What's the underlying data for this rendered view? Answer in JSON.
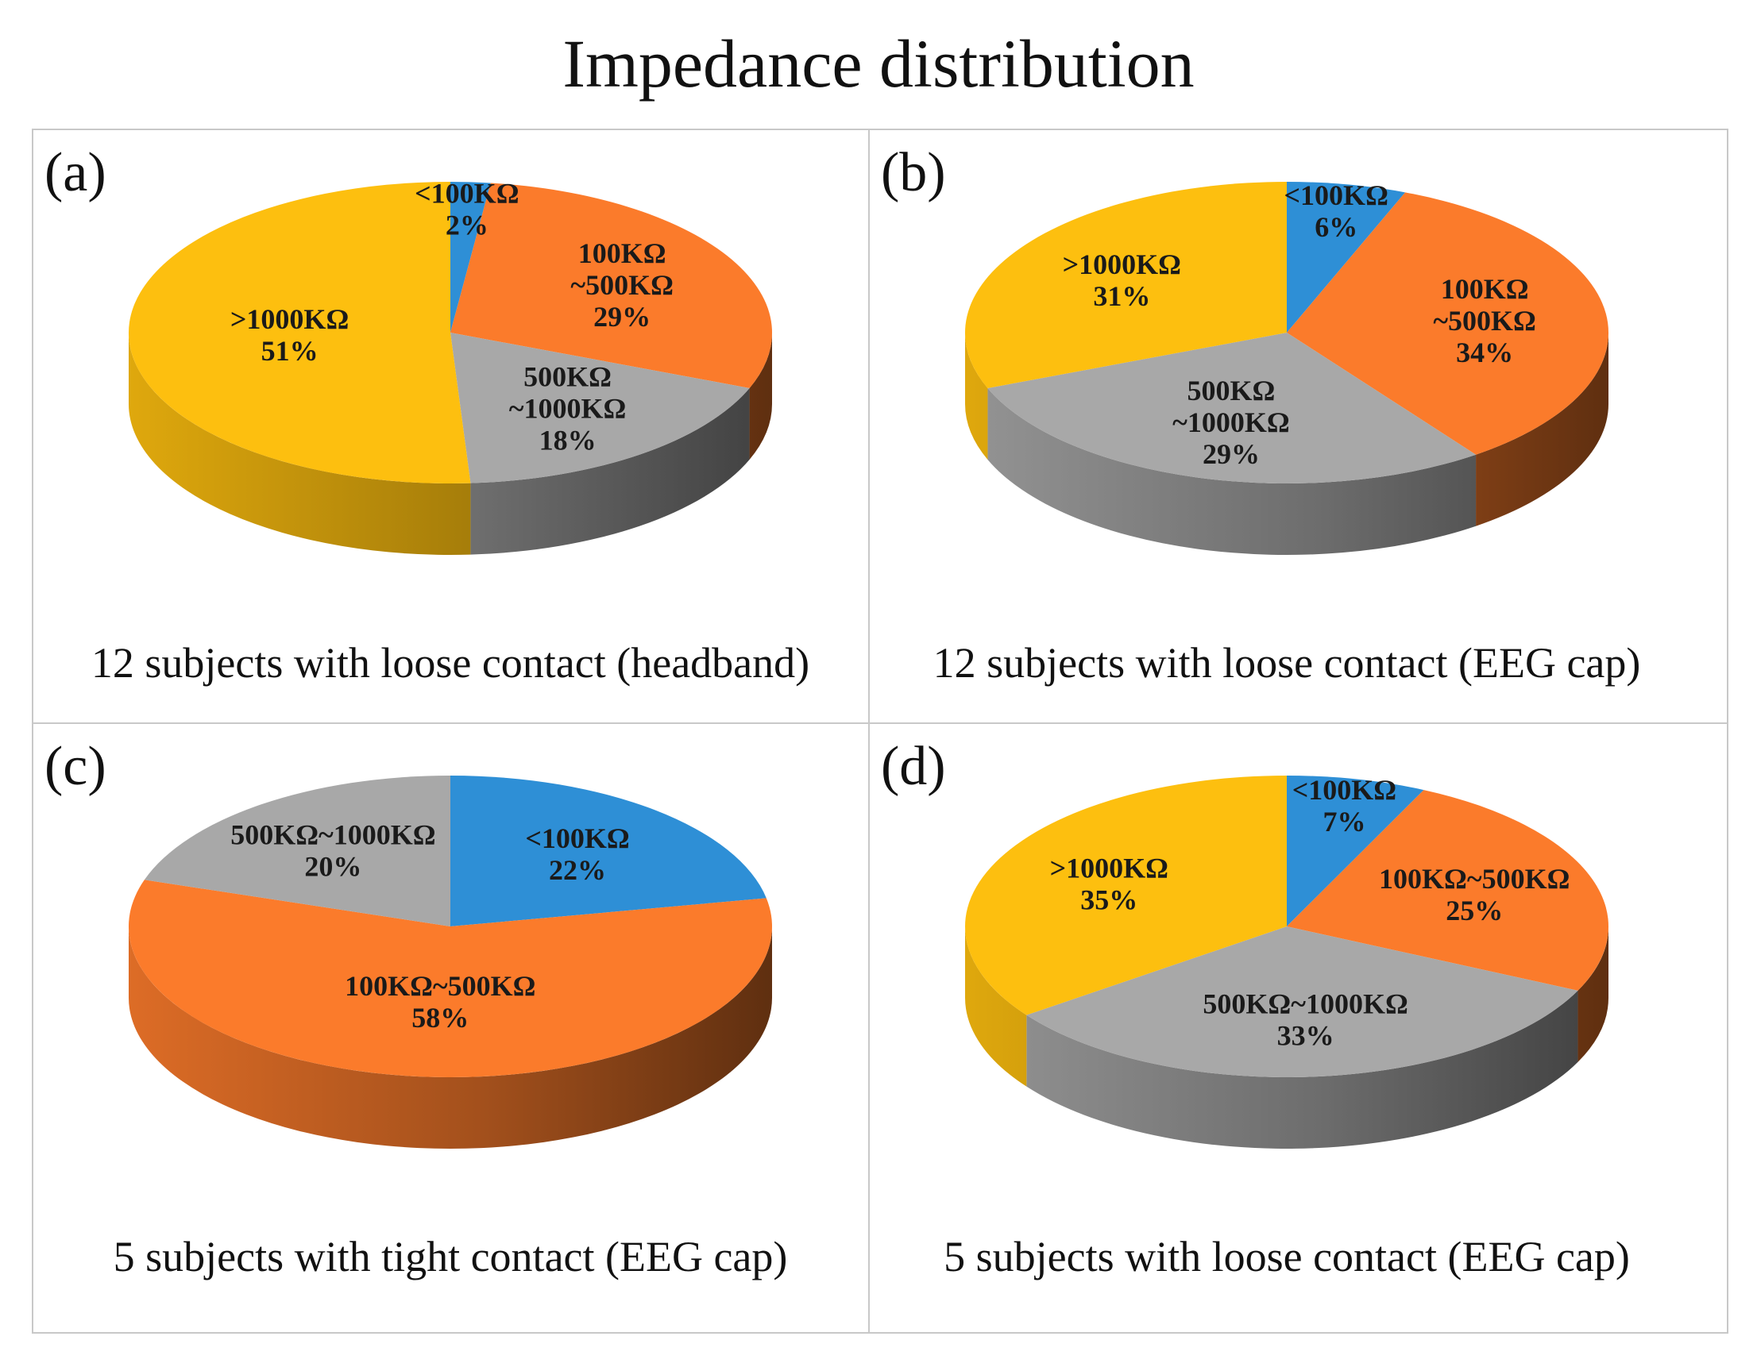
{
  "title": "Impedance distribution",
  "colors": {
    "lt100": "#2e8fd6",
    "r100_500": "#fb7b2b",
    "r500_1000": "#a8a8a8",
    "gt1000": "#fdbf0f",
    "border": "#c8c8c8"
  },
  "chart_data": [
    {
      "type": "pie",
      "panel_letter": "(a)",
      "caption": "12 subjects with loose contact (headband)",
      "slices": [
        {
          "category": "<100KΩ",
          "lines": [
            "<100KΩ",
            "2%"
          ],
          "value": 2,
          "color": "lt100"
        },
        {
          "category": "100KΩ~500KΩ",
          "lines": [
            "100KΩ",
            "~500KΩ",
            "29%"
          ],
          "value": 29,
          "color": "r100_500"
        },
        {
          "category": "500KΩ~1000KΩ",
          "lines": [
            "500KΩ",
            "~1000KΩ",
            "18%"
          ],
          "value": 18,
          "color": "r500_1000"
        },
        {
          "category": ">1000KΩ",
          "lines": [
            ">1000KΩ",
            "51%"
          ],
          "value": 51,
          "color": "gt1000"
        }
      ]
    },
    {
      "type": "pie",
      "panel_letter": "(b)",
      "caption": "12 subjects with loose contact (EEG cap)",
      "slices": [
        {
          "category": "<100KΩ",
          "lines": [
            "<100KΩ",
            "6%"
          ],
          "value": 6,
          "color": "lt100"
        },
        {
          "category": "100KΩ~500KΩ",
          "lines": [
            "100KΩ",
            "~500KΩ",
            "34%"
          ],
          "value": 34,
          "color": "r100_500"
        },
        {
          "category": "500KΩ~1000KΩ",
          "lines": [
            "500KΩ",
            "~1000KΩ",
            "29%"
          ],
          "value": 29,
          "color": "r500_1000"
        },
        {
          "category": ">1000KΩ",
          "lines": [
            ">1000KΩ",
            "31%"
          ],
          "value": 31,
          "color": "gt1000"
        }
      ]
    },
    {
      "type": "pie",
      "panel_letter": "(c)",
      "caption": "5 subjects with tight contact (EEG cap)",
      "slices": [
        {
          "category": "<100KΩ",
          "lines": [
            "<100KΩ",
            "22%"
          ],
          "value": 22,
          "color": "lt100"
        },
        {
          "category": "100KΩ~500KΩ",
          "lines": [
            "100KΩ~500KΩ",
            "58%"
          ],
          "value": 58,
          "color": "r100_500"
        },
        {
          "category": "500KΩ~1000KΩ",
          "lines": [
            "500KΩ~1000KΩ",
            "20%"
          ],
          "value": 20,
          "color": "r500_1000"
        }
      ]
    },
    {
      "type": "pie",
      "panel_letter": "(d)",
      "caption": "5 subjects with loose contact (EEG cap)",
      "slices": [
        {
          "category": "<100KΩ",
          "lines": [
            "<100KΩ",
            "7%"
          ],
          "value": 7,
          "color": "lt100"
        },
        {
          "category": "100KΩ~500KΩ",
          "lines": [
            "100KΩ~500KΩ",
            "25%"
          ],
          "value": 25,
          "color": "r100_500"
        },
        {
          "category": "500KΩ~1000KΩ",
          "lines": [
            "500KΩ~1000KΩ",
            "33%"
          ],
          "value": 33,
          "color": "r500_1000"
        },
        {
          "category": ">1000KΩ",
          "lines": [
            ">1000KΩ",
            "35%"
          ],
          "value": 35,
          "color": "gt1000"
        }
      ]
    }
  ]
}
